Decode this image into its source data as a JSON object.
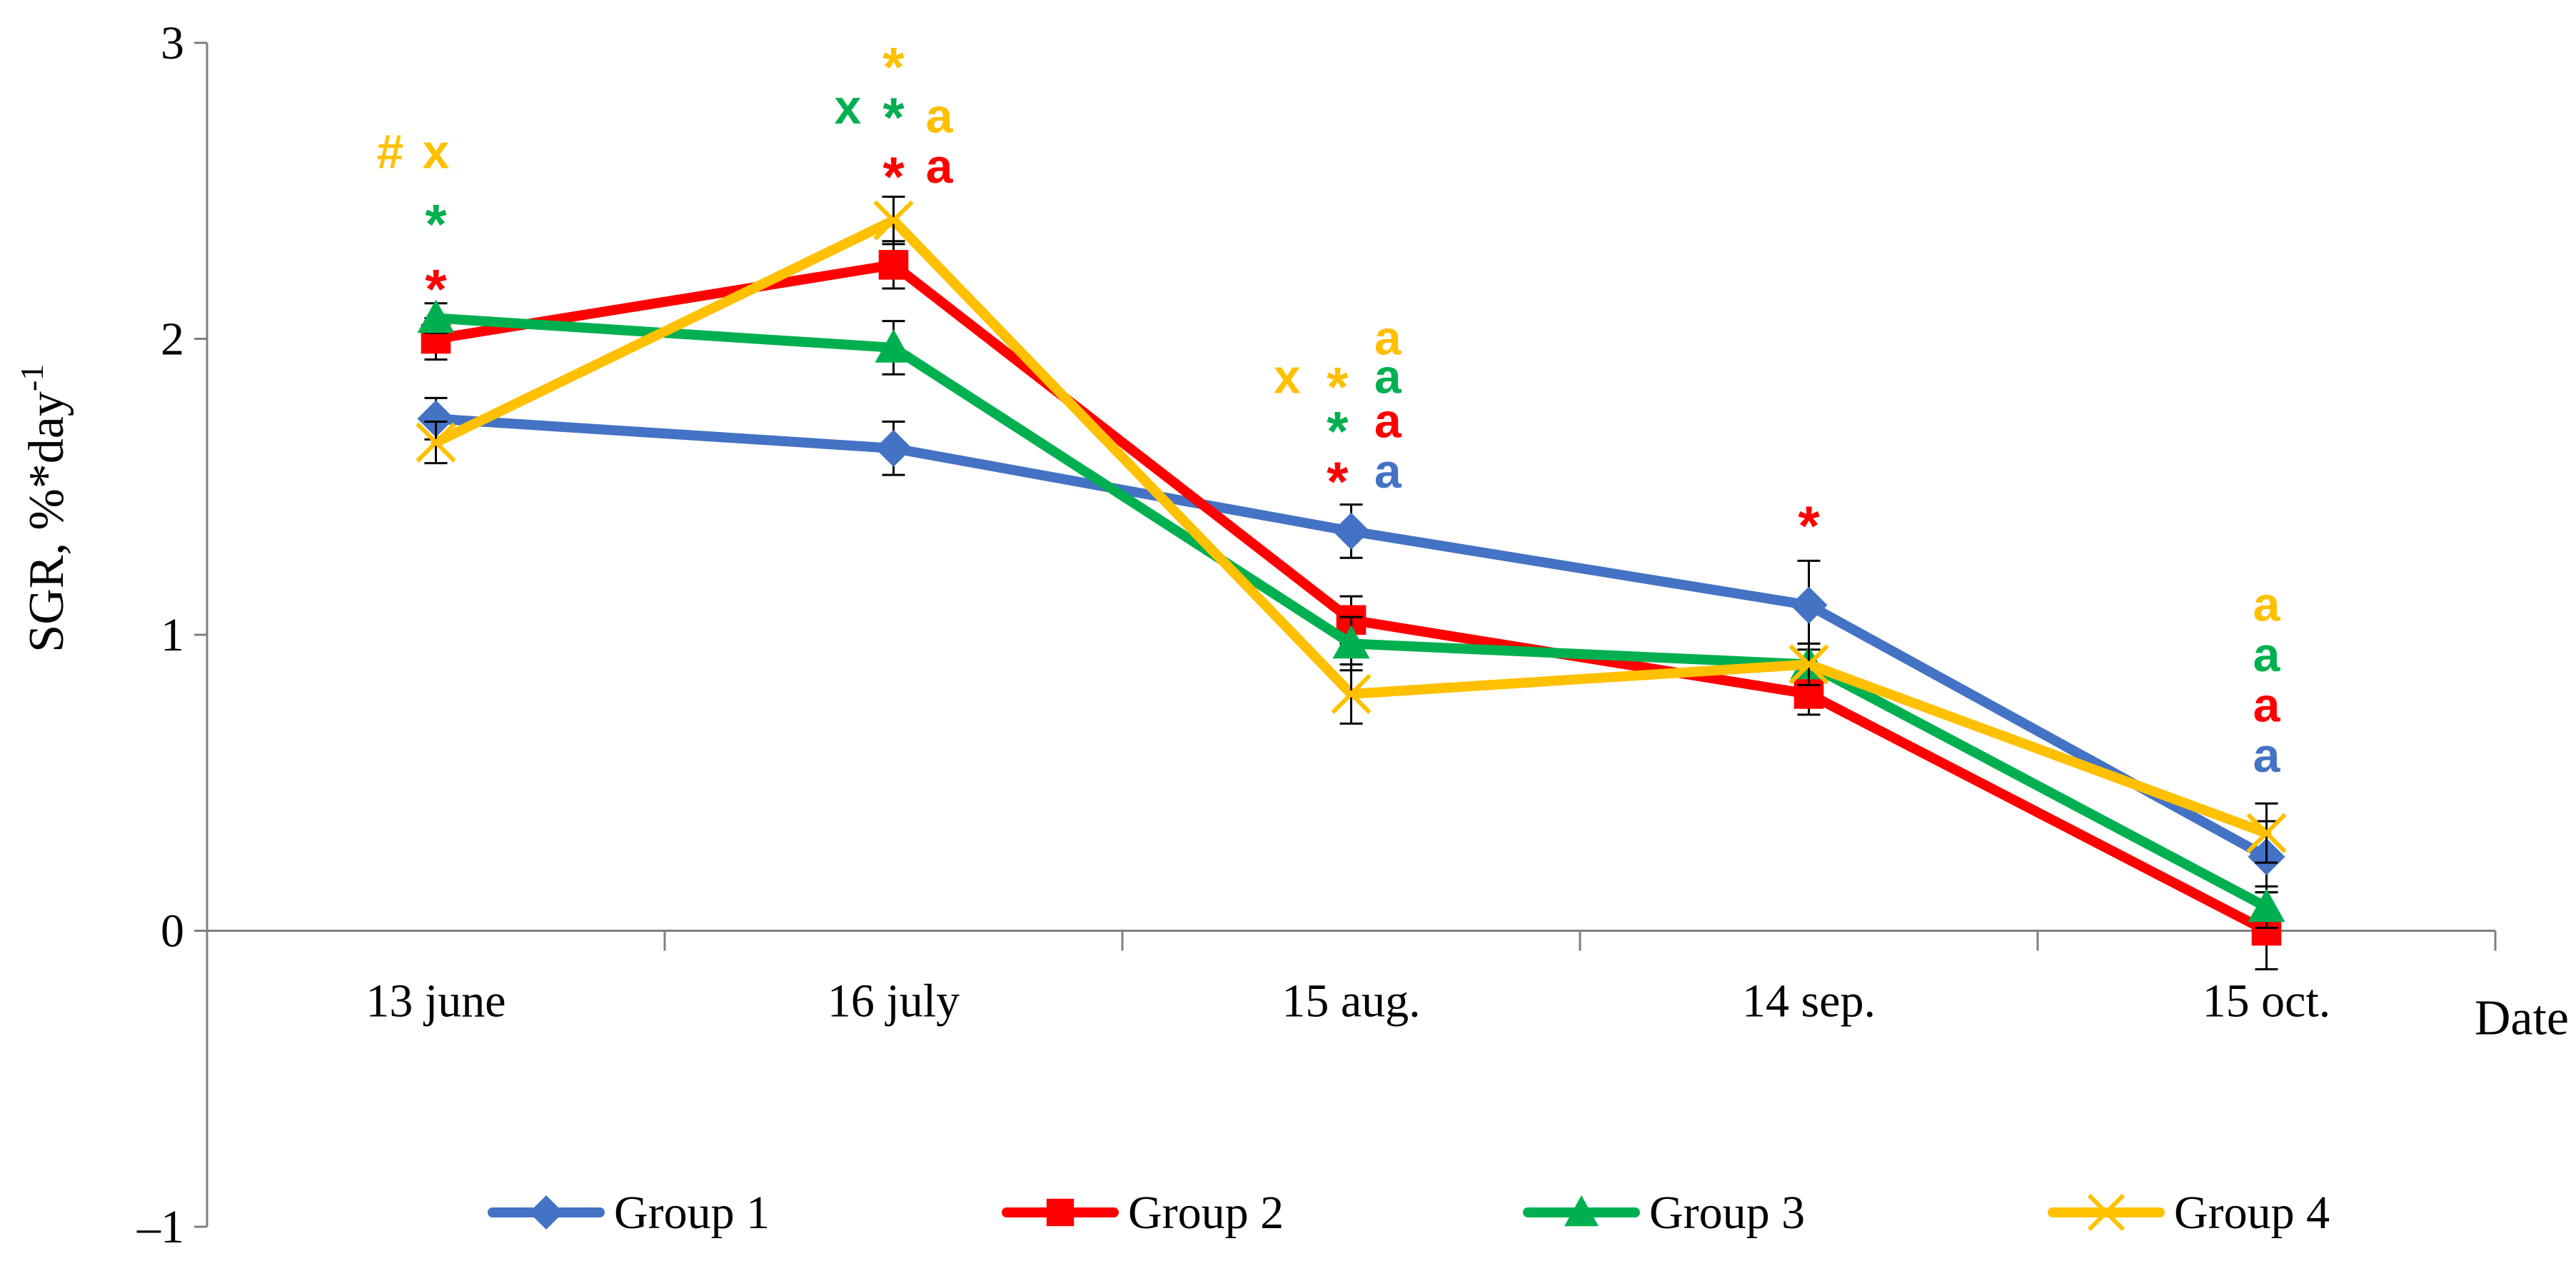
{
  "chart_data": {
    "type": "line",
    "title": "",
    "xlabel": "Date",
    "ylabel": "SGR, %*day",
    "ylabel_sup": "-1",
    "ylim": [
      -1,
      3
    ],
    "yticks": [
      -1,
      0,
      1,
      2,
      3
    ],
    "ytick_labels": [
      "–1",
      "0",
      "1",
      "2",
      "3"
    ],
    "categories": [
      "13 june",
      "16 july",
      "15 aug.",
      "14 sep.",
      "15 oct."
    ],
    "legend_position": "bottom",
    "series": [
      {
        "name": "Group 1",
        "color": "#4472C4",
        "marker": "diamond",
        "values": [
          1.73,
          1.63,
          1.35,
          1.1,
          0.25
        ],
        "errors": [
          0.07,
          0.09,
          0.09,
          0.15,
          0.12
        ]
      },
      {
        "name": "Group 2",
        "color": "#FF0000",
        "marker": "square",
        "values": [
          2.0,
          2.25,
          1.05,
          0.8,
          0.0
        ],
        "errors": [
          0.07,
          0.08,
          0.08,
          0.07,
          0.13
        ]
      },
      {
        "name": "Group 3",
        "color": "#00B050",
        "marker": "triangle",
        "values": [
          2.07,
          1.97,
          0.97,
          0.9,
          0.08
        ],
        "errors": [
          0.05,
          0.09,
          0.09,
          0.07,
          0.07
        ]
      },
      {
        "name": "Group 4",
        "color": "#FFC000",
        "marker": "x",
        "values": [
          1.65,
          2.4,
          0.8,
          0.9,
          0.33
        ],
        "errors": [
          0.07,
          0.08,
          0.1,
          0.07,
          0.1
        ]
      }
    ],
    "annotations": [
      {
        "category": "13 june",
        "text": "#",
        "color": "#FFC000",
        "y": 2.63,
        "dx": -0.1
      },
      {
        "category": "13 june",
        "text": "x",
        "color": "#FFC000",
        "y": 2.63,
        "dx": 0
      },
      {
        "category": "13 june",
        "text": "*",
        "color": "#00B050",
        "y": 2.42,
        "dx": 0
      },
      {
        "category": "13 june",
        "text": "*",
        "color": "#FF0000",
        "y": 2.2,
        "dx": 0
      },
      {
        "category": "16 july",
        "text": "*",
        "color": "#FFC000",
        "y": 2.95,
        "dx": 0
      },
      {
        "category": "16 july",
        "text": "x",
        "color": "#00B050",
        "y": 2.78,
        "dx": -0.1
      },
      {
        "category": "16 july",
        "text": "*",
        "color": "#00B050",
        "y": 2.78,
        "dx": 0
      },
      {
        "category": "16 july",
        "text": "a",
        "color": "#FFC000",
        "y": 2.75,
        "dx": 0.1
      },
      {
        "category": "16 july",
        "text": "*",
        "color": "#FF0000",
        "y": 2.58,
        "dx": 0
      },
      {
        "category": "16 july",
        "text": "a",
        "color": "#FF0000",
        "y": 2.58,
        "dx": 0.1
      },
      {
        "category": "15 aug.",
        "text": "a",
        "color": "#FFC000",
        "y": 2.0,
        "dx": 0.08
      },
      {
        "category": "15 aug.",
        "text": "x",
        "color": "#FFC000",
        "y": 1.87,
        "dx": -0.14
      },
      {
        "category": "15 aug.",
        "text": "*",
        "color": "#FFC000",
        "y": 1.87,
        "dx": -0.03
      },
      {
        "category": "15 aug.",
        "text": "a",
        "color": "#00B050",
        "y": 1.87,
        "dx": 0.08
      },
      {
        "category": "15 aug.",
        "text": "*",
        "color": "#00B050",
        "y": 1.72,
        "dx": -0.03
      },
      {
        "category": "15 aug.",
        "text": "a",
        "color": "#FF0000",
        "y": 1.72,
        "dx": 0.08
      },
      {
        "category": "15 aug.",
        "text": "*",
        "color": "#FF0000",
        "y": 1.55,
        "dx": -0.03
      },
      {
        "category": "15 aug.",
        "text": "a",
        "color": "#4472C4",
        "y": 1.55,
        "dx": 0.08
      },
      {
        "category": "14 sep.",
        "text": "*",
        "color": "#FF0000",
        "y": 1.4,
        "dx": 0
      },
      {
        "category": "15 oct.",
        "text": "a",
        "color": "#FFC000",
        "y": 1.1,
        "dx": 0
      },
      {
        "category": "15 oct.",
        "text": "a",
        "color": "#00B050",
        "y": 0.93,
        "dx": 0
      },
      {
        "category": "15 oct.",
        "text": "a",
        "color": "#FF0000",
        "y": 0.76,
        "dx": 0
      },
      {
        "category": "15 oct.",
        "text": "a",
        "color": "#4472C4",
        "y": 0.59,
        "dx": 0
      }
    ]
  }
}
